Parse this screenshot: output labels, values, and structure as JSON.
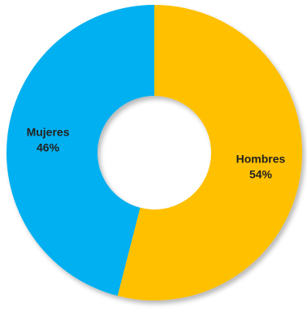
{
  "chart_data": {
    "type": "pie",
    "donut": true,
    "slices": [
      {
        "label": "Hombres",
        "value": 54,
        "value_label": "54%",
        "color": "#FFC000"
      },
      {
        "label": "Mujeres",
        "value": 46,
        "value_label": "46%",
        "color": "#00B0F0"
      }
    ],
    "title": "",
    "legend": "none"
  }
}
